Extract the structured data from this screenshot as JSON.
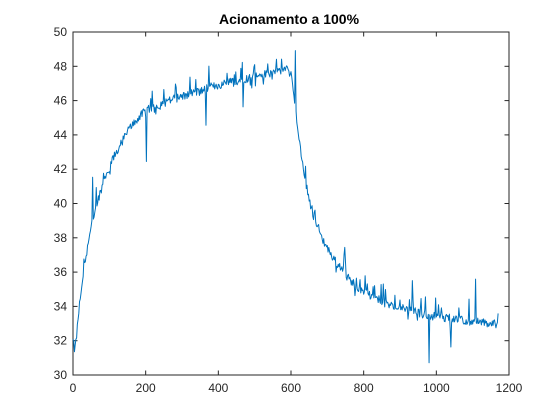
{
  "chart_data": {
    "type": "line",
    "title": "Acionamento a 100%",
    "xlabel": "",
    "ylabel": "",
    "xlim": [
      0,
      1200
    ],
    "ylim": [
      30,
      50
    ],
    "xticks": [
      0,
      200,
      400,
      600,
      800,
      1000,
      1200
    ],
    "yticks": [
      30,
      32,
      34,
      36,
      38,
      40,
      42,
      44,
      46,
      48,
      50
    ],
    "xtick_labels": [
      "0",
      "200",
      "400",
      "600",
      "800",
      "1000",
      "1200"
    ],
    "ytick_labels": [
      "30",
      "32",
      "34",
      "36",
      "38",
      "40",
      "42",
      "44",
      "46",
      "48",
      "50"
    ],
    "grid": false,
    "line_color": "#0072BD",
    "series": [
      {
        "values_description_none": null,
        "x": [
          0,
          5,
          10,
          15,
          20,
          25,
          30,
          40,
          50,
          60,
          70,
          80,
          90,
          100,
          110,
          120,
          130,
          140,
          150,
          160,
          170,
          180,
          190,
          200,
          220,
          240,
          260,
          280,
          300,
          320,
          340,
          360,
          380,
          400,
          420,
          440,
          460,
          480,
          500,
          520,
          540,
          560,
          580,
          595,
          600,
          610,
          620,
          630,
          640,
          650,
          660,
          670,
          680,
          690,
          700,
          720,
          740,
          760,
          780,
          800,
          820,
          840,
          860,
          880,
          900,
          920,
          940,
          960,
          980,
          1000,
          1020,
          1040,
          1060,
          1080,
          1100,
          1120,
          1140,
          1160,
          1170
        ],
        "y": [
          32.0,
          31.4,
          32.3,
          33.5,
          34.5,
          35.3,
          36.2,
          37.5,
          38.6,
          39.5,
          40.3,
          41.0,
          41.6,
          42.1,
          42.6,
          43.0,
          43.4,
          43.8,
          44.2,
          44.5,
          44.8,
          45.0,
          45.2,
          45.4,
          45.6,
          45.8,
          46.0,
          46.1,
          46.3,
          46.4,
          46.5,
          46.6,
          46.8,
          46.9,
          47.0,
          47.1,
          47.2,
          47.3,
          47.4,
          47.5,
          47.6,
          47.7,
          47.8,
          47.8,
          47.6,
          46.0,
          44.0,
          42.5,
          41.3,
          40.3,
          39.5,
          38.9,
          38.3,
          37.8,
          37.4,
          36.7,
          36.1,
          35.6,
          35.2,
          34.9,
          34.6,
          34.4,
          34.2,
          34.0,
          33.9,
          33.8,
          33.7,
          33.6,
          33.5,
          33.4,
          33.3,
          33.3,
          33.2,
          33.2,
          33.1,
          33.1,
          33.0,
          33.0,
          32.9
        ]
      }
    ]
  }
}
